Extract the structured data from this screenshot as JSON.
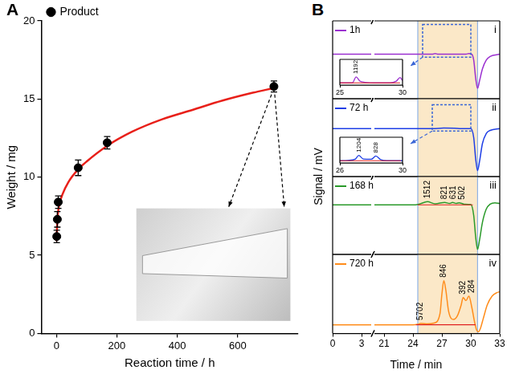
{
  "chart_data": [
    {
      "panel": "A",
      "type": "scatter",
      "xlabel": "Reaction time / h",
      "ylabel": "Weight / mg",
      "xlim": [
        -50,
        800
      ],
      "xticks": [
        0,
        200,
        400,
        600
      ],
      "ylim": [
        0,
        20
      ],
      "yticks": [
        0,
        5,
        10,
        15,
        20
      ],
      "grid": false,
      "legend": "top-left",
      "series": [
        {
          "name": "Product",
          "color": "#000000",
          "marker": "circle",
          "x": [
            1,
            3,
            6,
            72,
            168,
            720
          ],
          "values": [
            6.2,
            7.3,
            8.4,
            10.6,
            12.2,
            15.8
          ],
          "errors": [
            0.4,
            0.5,
            0.4,
            0.5,
            0.4,
            0.35
          ]
        },
        {
          "type": "line",
          "color": "#e8201a",
          "x": [
            0,
            2,
            5,
            10,
            20,
            40,
            72,
            100,
            168,
            250,
            350,
            450,
            550,
            650,
            720
          ],
          "values": [
            5.9,
            6.8,
            7.7,
            8.3,
            8.9,
            9.7,
            10.5,
            11.0,
            12.0,
            12.9,
            13.7,
            14.3,
            14.9,
            15.4,
            15.7
          ]
        }
      ]
    },
    {
      "panel": "B",
      "type": "line",
      "xlabel": "Time / min",
      "ylabel": "Signal / mV",
      "tick_labels": "x",
      "legend": "top-left",
      "shaded_range": [
        24.5,
        30.7
      ],
      "x_segments": [
        {
          "xlim": [
            0,
            4
          ],
          "xticks": [
            0,
            3
          ]
        },
        {
          "xlim": [
            20,
            33
          ],
          "xticks": [
            21,
            24,
            27,
            30,
            33
          ]
        }
      ],
      "traces": [
        {
          "panel": "i",
          "name": "1h",
          "color": "#9b30d0",
          "ylim": [
            -6,
            4.5
          ],
          "x": [
            0,
            4,
            20,
            24,
            25,
            26,
            26.3,
            26.6,
            27,
            28,
            29,
            29.5,
            29.8,
            30.1,
            30.3,
            30.5,
            30.7,
            30.9,
            31.2,
            31.6,
            32,
            33
          ],
          "values": [
            0,
            0,
            0,
            0,
            0,
            0,
            0.1,
            0,
            0,
            0,
            0,
            0.02,
            0.08,
            0,
            -0.8,
            -3.2,
            -4.6,
            -3.6,
            -2,
            -0.8,
            -0.3,
            0
          ],
          "inset": {
            "xlim": [
              25,
              30
            ],
            "xticks": [
              25,
              30
            ],
            "ylim": [
              -0.4,
              4
            ],
            "x": [
              25,
              25.5,
              26,
              26.3,
              26.6,
              27,
              28,
              29,
              29.5,
              29.8,
              30
            ],
            "values": [
              0,
              0,
              0,
              1.0,
              0.3,
              0.1,
              0,
              0,
              0.3,
              0.9,
              0.4
            ],
            "baseline": {
              "x": [
                25,
                29.8
              ],
              "value": 0
            },
            "peak_labels": [
              {
                "x": 26.3,
                "y": 1.0,
                "text": "1192"
              }
            ]
          }
        },
        {
          "panel": "ii",
          "name": "72 h",
          "color": "#1e3ee6",
          "ylim": [
            -8,
            5
          ],
          "x": [
            0,
            4,
            20,
            24,
            26,
            27.2,
            28.3,
            29,
            30,
            30.3,
            30.5,
            30.7,
            30.9,
            31.2,
            31.6,
            32,
            33
          ],
          "values": [
            0,
            0,
            0,
            0,
            0,
            0.1,
            0.08,
            0,
            0,
            -1.5,
            -5,
            -7,
            -5.5,
            -2.5,
            -0.8,
            -0.3,
            0
          ],
          "inset": {
            "xlim": [
              26,
              30
            ],
            "xticks": [
              26,
              30
            ],
            "ylim": [
              -0.4,
              4
            ],
            "x": [
              26,
              26.5,
              27,
              27.2,
              27.5,
              28,
              28.3,
              28.6,
              29,
              30
            ],
            "values": [
              0,
              0.05,
              0.3,
              0.9,
              0.3,
              0.25,
              0.8,
              0.2,
              0,
              0
            ],
            "baseline": {
              "x": [
                26,
                29.9
              ],
              "value": 0
            },
            "peak_labels": [
              {
                "x": 27.2,
                "y": 0.9,
                "text": "1204"
              },
              {
                "x": 28.3,
                "y": 0.8,
                "text": "828"
              }
            ]
          }
        },
        {
          "panel": "iii",
          "name": "168 h",
          "color": "#2a9a2a",
          "ylim": [
            -7,
            4
          ],
          "x": [
            0,
            4,
            20,
            24,
            24.6,
            25.5,
            26.3,
            27.3,
            27.8,
            28.1,
            28.5,
            28.8,
            29.3,
            30,
            30.3,
            30.5,
            30.7,
            30.9,
            31.2,
            31.6,
            32,
            32.5,
            33
          ],
          "values": [
            0,
            0,
            0,
            0,
            0.1,
            0.45,
            0.15,
            0.35,
            0.2,
            0.35,
            0.2,
            0.3,
            0.1,
            0.05,
            -1.5,
            -4.5,
            -6.3,
            -5,
            -2.5,
            -0.6,
            0.1,
            0.3,
            0.2
          ],
          "baseline": {
            "x": [
              24.5,
              30.2
            ],
            "value": 0
          },
          "peak_labels": [
            {
              "x": 25.5,
              "y": 0.45,
              "text": "1512"
            },
            {
              "x": 27.3,
              "y": 0.35,
              "text": "821"
            },
            {
              "x": 28.1,
              "y": 0.35,
              "text": "631"
            },
            {
              "x": 28.8,
              "y": 0.3,
              "text": "502"
            }
          ]
        },
        {
          "panel": "iv",
          "name": "720 h",
          "color": "#ff8c1a",
          "ylim": [
            -2,
            16
          ],
          "x": [
            0,
            4,
            20,
            24,
            24.5,
            24.8,
            25.5,
            26.2,
            26.8,
            27,
            27.2,
            27.4,
            27.7,
            28.2,
            28.6,
            29,
            29.2,
            29.5,
            29.8,
            30.1,
            30.4,
            30.6,
            30.8,
            31,
            31.3,
            31.7,
            32.2,
            32.7,
            33
          ],
          "values": [
            0,
            0,
            0,
            0,
            0.1,
            0.3,
            0.2,
            0.4,
            2.5,
            7,
            10,
            8,
            3,
            1.2,
            2,
            4.5,
            6.2,
            5.5,
            6.5,
            4,
            0.5,
            -1.2,
            -1.6,
            -0.8,
            1.5,
            4.5,
            6.5,
            7.3,
            7.5
          ],
          "baseline": {
            "x": [
              24.3,
              30.5
            ],
            "value": 0
          },
          "peak_labels": [
            {
              "x": 24.8,
              "y": 0.3,
              "text": "5702"
            },
            {
              "x": 27.2,
              "y": 10,
              "text": "846"
            },
            {
              "x": 29.2,
              "y": 6.2,
              "text": "392"
            },
            {
              "x": 29.8,
              "y": 6.5,
              "text": "284"
            }
          ]
        }
      ]
    }
  ]
}
